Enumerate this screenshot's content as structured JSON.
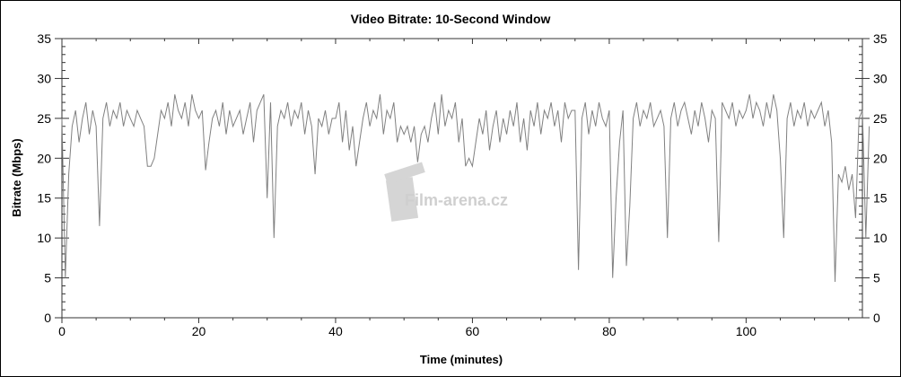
{
  "chart_data": {
    "type": "line",
    "title": "Video Bitrate: 10-Second Window",
    "xlabel": "Time (minutes)",
    "ylabel": "Bitrate (Mbps)",
    "xlim": [
      0,
      117
    ],
    "ylim": [
      0,
      35
    ],
    "xticks": [
      0,
      20,
      40,
      60,
      80,
      100
    ],
    "yticks": [
      0,
      5,
      10,
      15,
      20,
      25,
      30,
      35
    ],
    "right_axis_ticks": true,
    "grid": false,
    "line_color": "#808080",
    "x_step": 0.5,
    "x_start": 0,
    "values": [
      25,
      5,
      18,
      24,
      26,
      22,
      25,
      27,
      23,
      26,
      24,
      11.5,
      25,
      27,
      24,
      26,
      25,
      27,
      24,
      26,
      25,
      24,
      26,
      25,
      24,
      19,
      19,
      20,
      23,
      26,
      25,
      27,
      24,
      28,
      26,
      25,
      27,
      24,
      28,
      26,
      25,
      26,
      18.5,
      22,
      25,
      26,
      24,
      27,
      23,
      26,
      24,
      25,
      26,
      23,
      25,
      27,
      22,
      26,
      27,
      28,
      15,
      27,
      10,
      24,
      26,
      25,
      27,
      24,
      26,
      25,
      27,
      23,
      26,
      24,
      18,
      25,
      24,
      26,
      23,
      25,
      25,
      27,
      22,
      26,
      21,
      24,
      19,
      22,
      25,
      27,
      24,
      26,
      25,
      28,
      23,
      26,
      25,
      27,
      22,
      24,
      23,
      24,
      22,
      24,
      19.5,
      23,
      24,
      22,
      25,
      27,
      23,
      28,
      24,
      26,
      25,
      27,
      22,
      25,
      19,
      20,
      19,
      22,
      25,
      23,
      26,
      21,
      24,
      26,
      22,
      25,
      23,
      26,
      24,
      27,
      22,
      25,
      21,
      26,
      24,
      27,
      23,
      26,
      25,
      27,
      24,
      26,
      22,
      27,
      25,
      26,
      26,
      6,
      25,
      27,
      23,
      26,
      24,
      27,
      25,
      24,
      26,
      5,
      15,
      22,
      26,
      6.5,
      14,
      25,
      27,
      24,
      26,
      25,
      27,
      24,
      25,
      26,
      24,
      10,
      25,
      27,
      24,
      26,
      27,
      25,
      23,
      26,
      24,
      27,
      25,
      22,
      26,
      25,
      9.5,
      27,
      26,
      25,
      27,
      24,
      26,
      25,
      26,
      28,
      25,
      27,
      26,
      24,
      27,
      25,
      28,
      26,
      20,
      10,
      25,
      27,
      24,
      26,
      25,
      27,
      24,
      26,
      25,
      26,
      27,
      24,
      26,
      22,
      4.5,
      18,
      17,
      19,
      16,
      18,
      12.5,
      25,
      26,
      10,
      24
    ]
  },
  "watermark": "Film-arena.cz"
}
